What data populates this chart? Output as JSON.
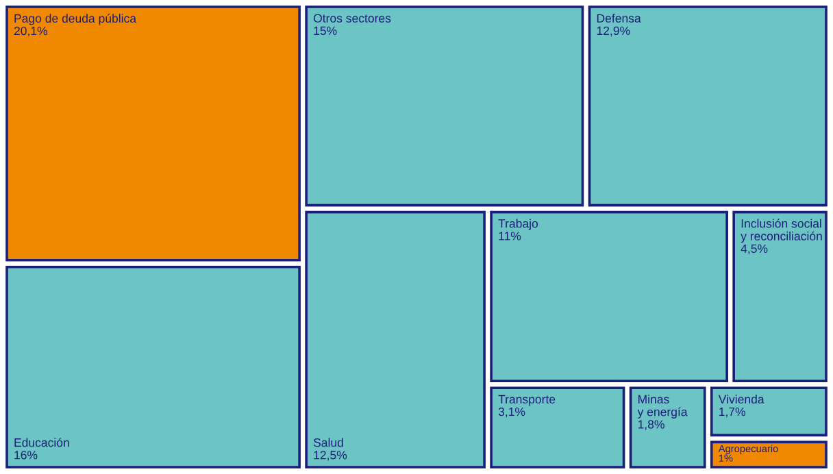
{
  "chart_data": {
    "type": "other",
    "categories": [
      "Pago de deuda pública",
      "Otros sectores",
      "Defensa",
      "Educación",
      "Salud",
      "Trabajo",
      "Inclusión social\ny reconciliación",
      "Transporte",
      "Minas\ny energía",
      "Vivienda",
      "Agropecuario"
    ],
    "values": [
      20.1,
      15,
      12.9,
      16,
      12.5,
      11,
      4.5,
      3.1,
      1.8,
      1.7,
      1
    ],
    "value_labels": [
      "20,1%",
      "15%",
      "12,9%",
      "16%",
      "12,5%",
      "11%",
      "4,5%",
      "3,1%",
      "1,8%",
      "1,7%",
      "1%"
    ],
    "colors": [
      "#f08800",
      "#6cc4c4",
      "#6cc4c4",
      "#6cc4c4",
      "#6cc4c4",
      "#6cc4c4",
      "#6cc4c4",
      "#6cc4c4",
      "#6cc4c4",
      "#6cc4c4",
      "#f08800"
    ]
  }
}
